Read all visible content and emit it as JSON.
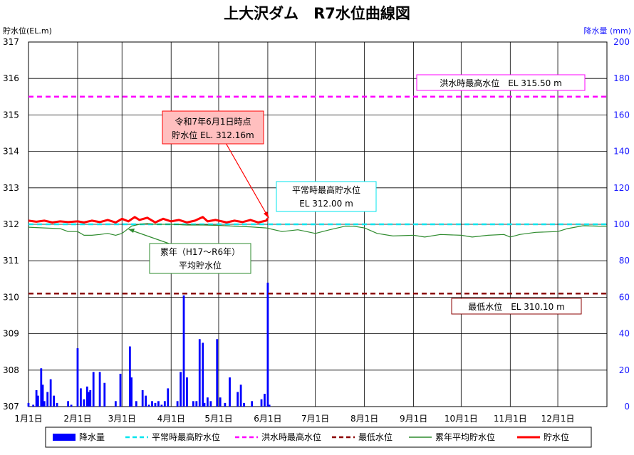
{
  "chart_data": {
    "type": "line",
    "title": "上大沢ダム　R7水位曲線図",
    "y_left": {
      "label": "貯水位(EL.m)",
      "min": 307,
      "max": 317,
      "ticks": [
        307,
        308,
        309,
        310,
        311,
        312,
        313,
        314,
        315,
        316,
        317
      ]
    },
    "y_right": {
      "label": "降水量 (mm)",
      "min": 0,
      "max": 200,
      "ticks": [
        0,
        20,
        40,
        60,
        80,
        100,
        120,
        140,
        160,
        180,
        200
      ]
    },
    "x_categories": [
      "1月1日",
      "2月1日",
      "3月1日",
      "4月1日",
      "5月1日",
      "6月1日",
      "7月1日",
      "8月1日",
      "9月1日",
      "10月1日",
      "11月1日",
      "12月1日"
    ],
    "x_range_days": [
      0,
      365
    ],
    "month_start_days": [
      0,
      31,
      59,
      90,
      120,
      151,
      181,
      212,
      243,
      273,
      304,
      334
    ],
    "grid": true,
    "legend_position": "bottom",
    "legend": [
      {
        "label": "降水量",
        "type": "bar",
        "color": "#0000ff"
      },
      {
        "label": "平常時最高貯水位",
        "type": "dash",
        "color": "#00e5ee"
      },
      {
        "label": "洪水時最高水位",
        "type": "dash",
        "color": "#ff00ff"
      },
      {
        "label": "最低水位",
        "type": "dash",
        "color": "#8b0000"
      },
      {
        "label": "累年平均貯水位",
        "type": "line",
        "color": "#2e8b2e"
      },
      {
        "label": "貯水位",
        "type": "line",
        "color": "#ff0000"
      }
    ],
    "reference_lines": [
      {
        "name": "平常時最高貯水位",
        "value": 312.0,
        "color": "#00e5ee"
      },
      {
        "name": "洪水時最高水位",
        "value": 315.5,
        "color": "#ff00ff"
      },
      {
        "name": "最低水位",
        "value": 310.1,
        "color": "#8b0000"
      }
    ],
    "annotations": {
      "flood_max": "洪水時最高水位　EL 315.50 m",
      "normal_max_1": "平常時最高貯水位",
      "normal_max_2": "EL 312.00 m",
      "current_1": "令和7年6月1日時点",
      "current_2": "貯水位 EL. 312.16m",
      "average_1": "累年（H17～R6年）",
      "average_2": "平均貯水位",
      "min_level": "最低水位　EL 310.10 m"
    },
    "series": [
      {
        "name": "貯水位",
        "color": "#ff0000",
        "x": [
          0,
          5,
          10,
          15,
          20,
          25,
          31,
          35,
          40,
          45,
          50,
          55,
          59,
          63,
          67,
          70,
          75,
          80,
          85,
          90,
          95,
          100,
          105,
          110,
          113,
          118,
          125,
          130,
          135,
          140,
          145,
          150,
          151
        ],
        "y": [
          312.1,
          312.07,
          312.1,
          312.05,
          312.08,
          312.06,
          312.08,
          312.05,
          312.1,
          312.06,
          312.12,
          312.05,
          312.15,
          312.08,
          312.2,
          312.12,
          312.18,
          312.05,
          312.15,
          312.08,
          312.12,
          312.05,
          312.1,
          312.2,
          312.08,
          312.12,
          312.05,
          312.1,
          312.06,
          312.12,
          312.05,
          312.1,
          312.16
        ]
      },
      {
        "name": "累年平均貯水位",
        "color": "#2e8b2e",
        "x": [
          0,
          10,
          20,
          25,
          31,
          35,
          40,
          45,
          50,
          55,
          59,
          62,
          65,
          70,
          75,
          80,
          90,
          100,
          110,
          120,
          130,
          140,
          150,
          160,
          170,
          181,
          190,
          200,
          205,
          212,
          220,
          230,
          243,
          250,
          260,
          273,
          280,
          290,
          300,
          304,
          310,
          320,
          334,
          340,
          350,
          360,
          365
        ],
        "y": [
          311.92,
          311.9,
          311.88,
          311.8,
          311.8,
          311.7,
          311.7,
          311.72,
          311.75,
          311.7,
          311.75,
          311.85,
          311.95,
          312.0,
          312.02,
          312.0,
          312.0,
          311.98,
          311.98,
          311.97,
          311.95,
          311.93,
          311.9,
          311.8,
          311.85,
          311.75,
          311.85,
          311.95,
          311.95,
          311.9,
          311.75,
          311.68,
          311.7,
          311.65,
          311.72,
          311.7,
          311.65,
          311.7,
          311.72,
          311.65,
          311.72,
          311.78,
          311.8,
          311.88,
          311.96,
          311.95,
          311.95
        ]
      }
    ],
    "precipitation": {
      "name": "降水量",
      "color": "#0000ff",
      "x": [
        0,
        3,
        5,
        6,
        8,
        9,
        10,
        12,
        14,
        16,
        18,
        25,
        27,
        31,
        33,
        35,
        37,
        38,
        39,
        41,
        45,
        48,
        55,
        58,
        64,
        65,
        68,
        72,
        74,
        76,
        78,
        80,
        82,
        84,
        86,
        88,
        94,
        96,
        98,
        100,
        104,
        106,
        108,
        110,
        111,
        113,
        115,
        119,
        121,
        124,
        127,
        132,
        134,
        136,
        141,
        147,
        149,
        151,
        152
      ],
      "y": [
        2,
        1,
        9,
        6,
        21,
        12,
        3,
        8,
        15,
        6,
        2,
        3,
        1,
        32,
        10,
        4,
        11,
        8,
        9,
        19,
        19,
        13,
        3,
        18,
        33,
        16,
        3,
        9,
        6,
        1,
        3,
        2,
        3,
        1,
        3,
        10,
        3,
        19,
        61,
        16,
        3,
        3,
        37,
        35,
        2,
        5,
        3,
        37,
        5,
        2,
        16,
        8,
        12,
        2,
        3,
        4,
        7,
        68,
        1
      ]
    }
  }
}
